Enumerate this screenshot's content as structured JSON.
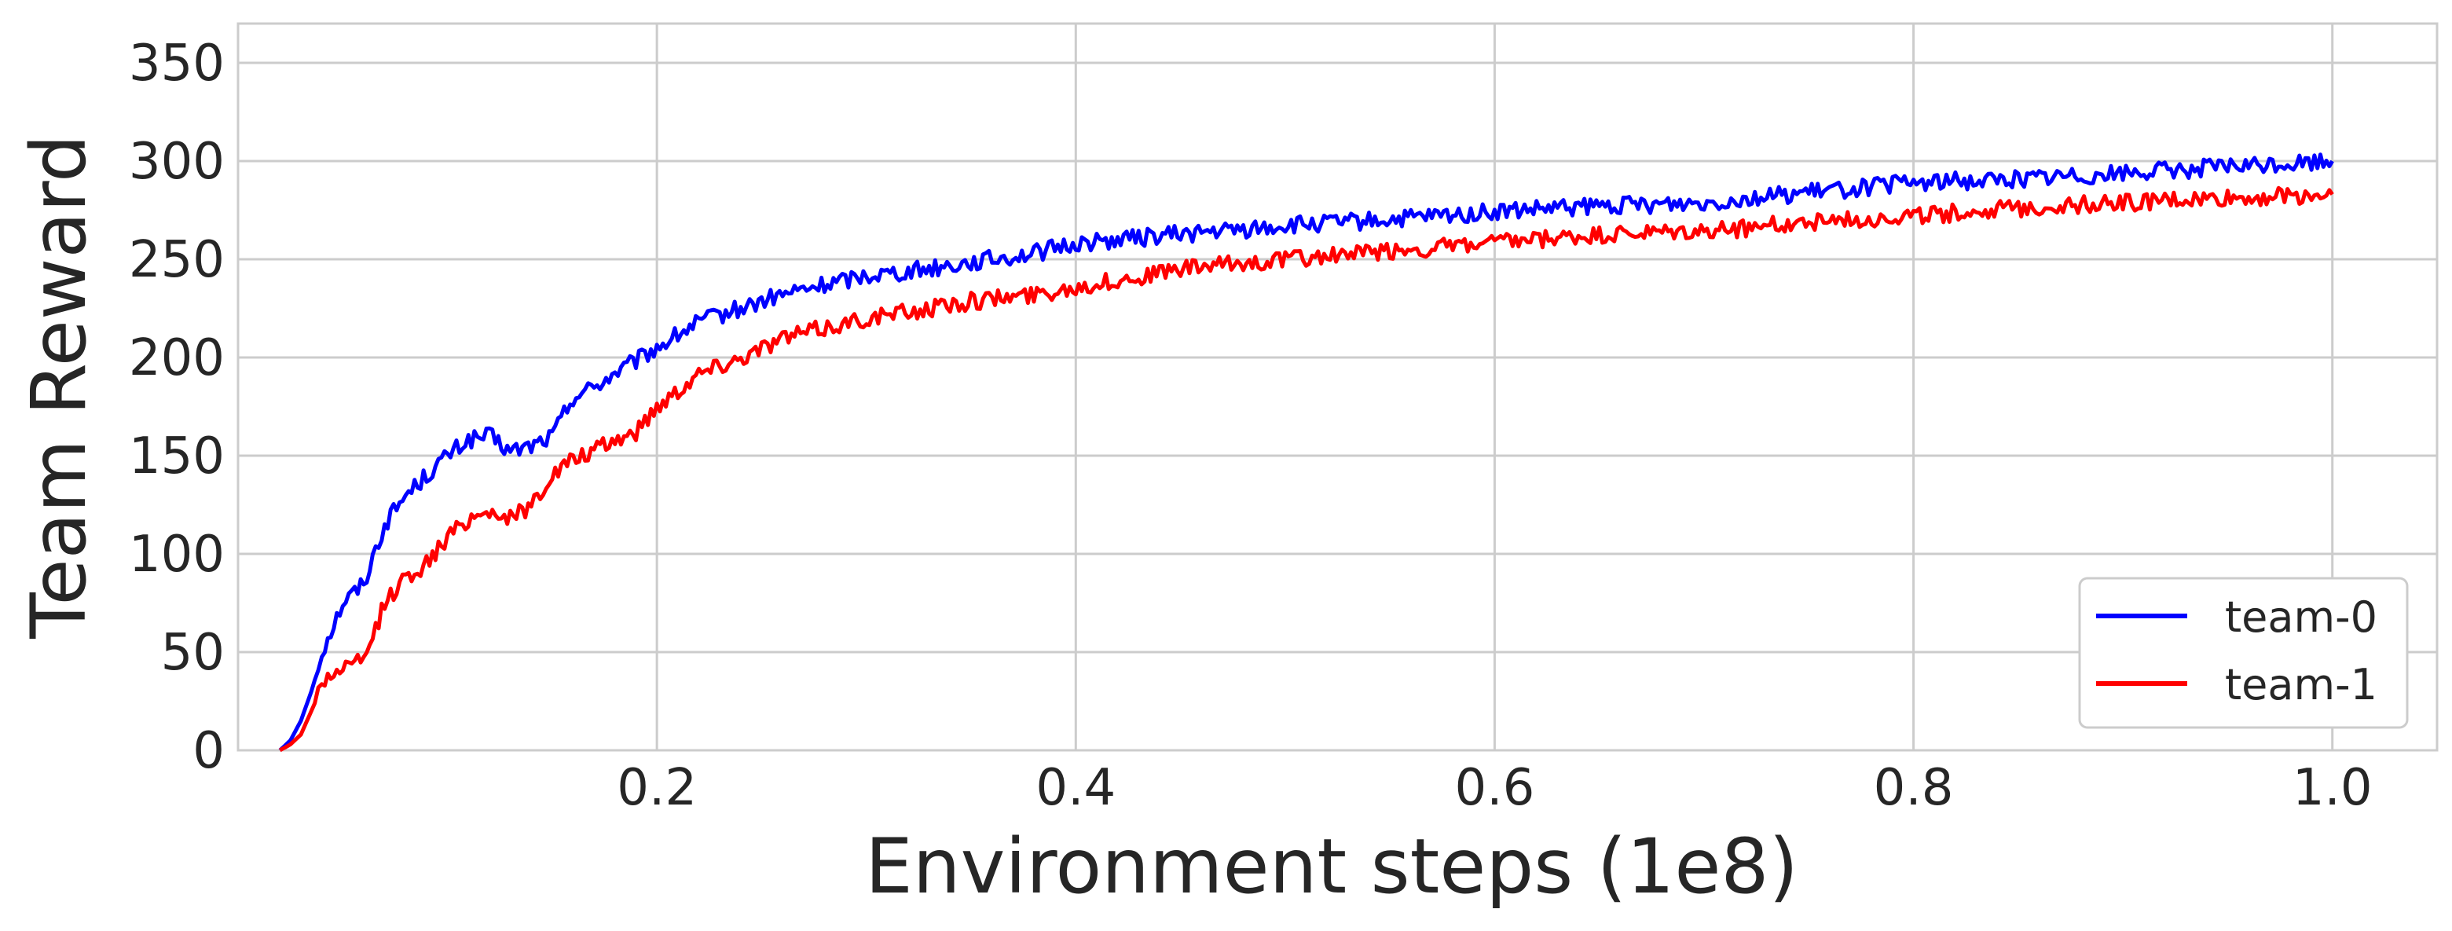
{
  "chart_data": {
    "type": "line",
    "xlabel": "Environment steps (1e8)",
    "ylabel": "Team Reward",
    "xlim": [
      0.0,
      1.05
    ],
    "ylim": [
      0,
      370
    ],
    "xticks": [
      "0.2",
      "0.4",
      "0.6",
      "0.8",
      "1.0"
    ],
    "yticks": [
      "0",
      "50",
      "100",
      "150",
      "200",
      "250",
      "300",
      "350"
    ],
    "grid": true,
    "legend_position": "lower-right",
    "series": [
      {
        "name": "team-0",
        "color": "#0000ff",
        "x": [
          0.02,
          0.025,
          0.03,
          0.035,
          0.04,
          0.05,
          0.06,
          0.07,
          0.08,
          0.09,
          0.1,
          0.11,
          0.12,
          0.13,
          0.14,
          0.15,
          0.16,
          0.17,
          0.18,
          0.19,
          0.2,
          0.22,
          0.24,
          0.26,
          0.28,
          0.3,
          0.32,
          0.34,
          0.36,
          0.38,
          0.4,
          0.42,
          0.45,
          0.48,
          0.5,
          0.55,
          0.6,
          0.65,
          0.7,
          0.75,
          0.8,
          0.85,
          0.9,
          0.95,
          1.0
        ],
        "y": [
          0,
          5,
          15,
          30,
          50,
          75,
          85,
          115,
          130,
          140,
          150,
          158,
          160,
          152,
          155,
          160,
          180,
          185,
          192,
          198,
          205,
          218,
          225,
          232,
          237,
          242,
          244,
          247,
          250,
          253,
          258,
          260,
          263,
          265,
          267,
          270,
          274,
          277,
          279,
          284,
          289,
          291,
          294,
          297,
          300
        ]
      },
      {
        "name": "team-1",
        "color": "#ff0000",
        "x": [
          0.02,
          0.025,
          0.03,
          0.035,
          0.04,
          0.05,
          0.06,
          0.07,
          0.08,
          0.09,
          0.1,
          0.11,
          0.12,
          0.13,
          0.14,
          0.15,
          0.16,
          0.17,
          0.18,
          0.19,
          0.2,
          0.22,
          0.24,
          0.26,
          0.28,
          0.3,
          0.32,
          0.34,
          0.36,
          0.38,
          0.4,
          0.42,
          0.45,
          0.48,
          0.5,
          0.55,
          0.6,
          0.65,
          0.7,
          0.75,
          0.8,
          0.85,
          0.9,
          0.95,
          1.0
        ],
        "y": [
          0,
          3,
          8,
          20,
          35,
          42,
          45,
          75,
          88,
          95,
          108,
          118,
          122,
          118,
          125,
          140,
          148,
          152,
          158,
          162,
          175,
          192,
          200,
          210,
          215,
          220,
          223,
          227,
          230,
          232,
          236,
          239,
          245,
          248,
          250,
          254,
          258,
          262,
          264,
          269,
          272,
          276,
          279,
          281,
          283
        ]
      }
    ]
  }
}
